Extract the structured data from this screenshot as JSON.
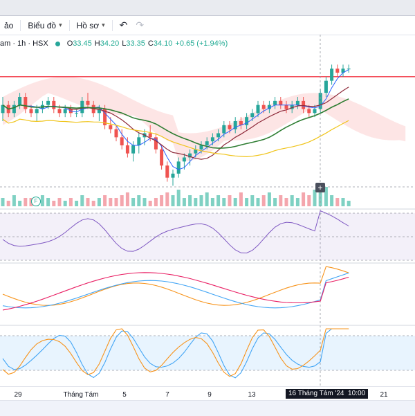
{
  "toolbar": {
    "item0_label": "ảo",
    "item1_label": "Biểu đồ",
    "item2_label": "Hồ sơ",
    "undo_icon": "undo-icon",
    "redo_icon": "redo-icon"
  },
  "legend": {
    "symbol": "am · 1h · HSX",
    "open_label": "O",
    "open": "33.45",
    "high_label": "H",
    "high": "34.20",
    "low_label": "L",
    "low": "33.35",
    "close_label": "C",
    "close": "34.10",
    "change": "+0.65 (+1.94%)"
  },
  "xaxis": {
    "ticks": [
      "29",
      "Tháng Tám",
      "5",
      "7",
      "9",
      "13",
      "21"
    ],
    "crosshair_label": "16 Tháng Tám '24",
    "crosshair_time": "10:00"
  },
  "markers": {
    "flag_letter": "F",
    "plus_symbol": "+"
  },
  "colors": {
    "up": "#26a69a",
    "down": "#ef5350",
    "volume_up": "#7fd1c3",
    "volume_down": "#f4a6ad"
  },
  "chart_data": {
    "type": "candlestick",
    "candles": [
      [
        33.0,
        33.4,
        32.8,
        33.2
      ],
      [
        33.2,
        33.3,
        32.9,
        33.0
      ],
      [
        33.0,
        33.3,
        32.9,
        33.2
      ],
      [
        33.2,
        33.5,
        33.1,
        33.4
      ],
      [
        33.4,
        33.5,
        33.0,
        33.1
      ],
      [
        33.1,
        33.2,
        32.9,
        33.0
      ],
      [
        33.0,
        33.2,
        32.8,
        33.1
      ],
      [
        33.1,
        33.3,
        33.0,
        33.2
      ],
      [
        33.2,
        33.4,
        33.1,
        33.3
      ],
      [
        33.3,
        33.4,
        33.0,
        33.1
      ],
      [
        33.1,
        33.2,
        32.9,
        33.0
      ],
      [
        33.0,
        33.2,
        32.9,
        33.1
      ],
      [
        33.1,
        33.2,
        32.9,
        33.0
      ],
      [
        33.0,
        33.1,
        32.9,
        33.0
      ],
      [
        33.0,
        33.4,
        32.9,
        33.3
      ],
      [
        33.3,
        33.5,
        33.1,
        33.2
      ],
      [
        33.2,
        33.3,
        32.9,
        33.0
      ],
      [
        33.0,
        33.2,
        32.8,
        33.1
      ],
      [
        33.1,
        33.2,
        32.6,
        32.7
      ],
      [
        32.7,
        32.9,
        32.5,
        32.6
      ],
      [
        32.6,
        32.7,
        32.3,
        32.4
      ],
      [
        32.4,
        32.6,
        32.1,
        32.2
      ],
      [
        32.2,
        32.4,
        31.9,
        32.0
      ],
      [
        32.0,
        32.3,
        31.8,
        32.2
      ],
      [
        32.2,
        32.5,
        32.0,
        32.4
      ],
      [
        32.4,
        32.6,
        32.2,
        32.5
      ],
      [
        32.5,
        32.7,
        32.3,
        32.4
      ],
      [
        32.4,
        32.5,
        32.0,
        32.1
      ],
      [
        32.1,
        32.2,
        31.6,
        31.7
      ],
      [
        31.7,
        31.8,
        31.3,
        31.4
      ],
      [
        31.4,
        31.6,
        31.2,
        31.5
      ],
      [
        31.5,
        31.9,
        31.4,
        31.8
      ],
      [
        31.8,
        32.0,
        31.6,
        31.9
      ],
      [
        31.9,
        32.1,
        31.7,
        32.0
      ],
      [
        32.0,
        32.2,
        31.9,
        32.1
      ],
      [
        32.1,
        32.3,
        32.0,
        32.2
      ],
      [
        32.2,
        32.4,
        32.1,
        32.3
      ],
      [
        32.3,
        32.5,
        32.2,
        32.4
      ],
      [
        32.4,
        32.6,
        32.3,
        32.5
      ],
      [
        32.5,
        32.8,
        32.4,
        32.7
      ],
      [
        32.7,
        32.8,
        32.5,
        32.6
      ],
      [
        32.6,
        32.9,
        32.5,
        32.8
      ],
      [
        32.8,
        32.9,
        32.6,
        32.7
      ],
      [
        32.7,
        33.0,
        32.6,
        32.9
      ],
      [
        32.9,
        33.1,
        32.8,
        33.0
      ],
      [
        33.0,
        33.3,
        32.9,
        33.2
      ],
      [
        33.2,
        33.3,
        33.0,
        33.1
      ],
      [
        33.1,
        33.3,
        33.0,
        33.2
      ],
      [
        33.2,
        33.4,
        33.1,
        33.3
      ],
      [
        33.3,
        33.4,
        33.1,
        33.2
      ],
      [
        33.2,
        33.3,
        33.0,
        33.1
      ],
      [
        33.1,
        33.3,
        33.0,
        33.2
      ],
      [
        33.2,
        33.4,
        33.1,
        33.3
      ],
      [
        33.3,
        33.4,
        33.0,
        33.1
      ],
      [
        33.1,
        33.2,
        32.9,
        33.0
      ],
      [
        33.0,
        33.2,
        32.9,
        33.1
      ],
      [
        33.1,
        33.6,
        33.0,
        33.5
      ],
      [
        33.5,
        33.9,
        33.4,
        33.8
      ],
      [
        33.8,
        34.2,
        33.7,
        34.1
      ],
      [
        34.1,
        34.2,
        33.9,
        34.0
      ],
      [
        34.0,
        34.2,
        33.9,
        34.1
      ],
      [
        34.1,
        34.2,
        34.0,
        34.1
      ]
    ],
    "volume": [
      3,
      2,
      4,
      2,
      3,
      3,
      2,
      4,
      3,
      2,
      3,
      2,
      3,
      2,
      4,
      3,
      2,
      3,
      4,
      3,
      3,
      4,
      5,
      3,
      4,
      3,
      2,
      3,
      4,
      5,
      4,
      6,
      3,
      4,
      3,
      4,
      5,
      3,
      4,
      3,
      4,
      3,
      5,
      3,
      4,
      3,
      4,
      5,
      3,
      4,
      3,
      4,
      3,
      5,
      4,
      6,
      5,
      7,
      4,
      3,
      3,
      2
    ],
    "resistance_level": 33.9
  }
}
